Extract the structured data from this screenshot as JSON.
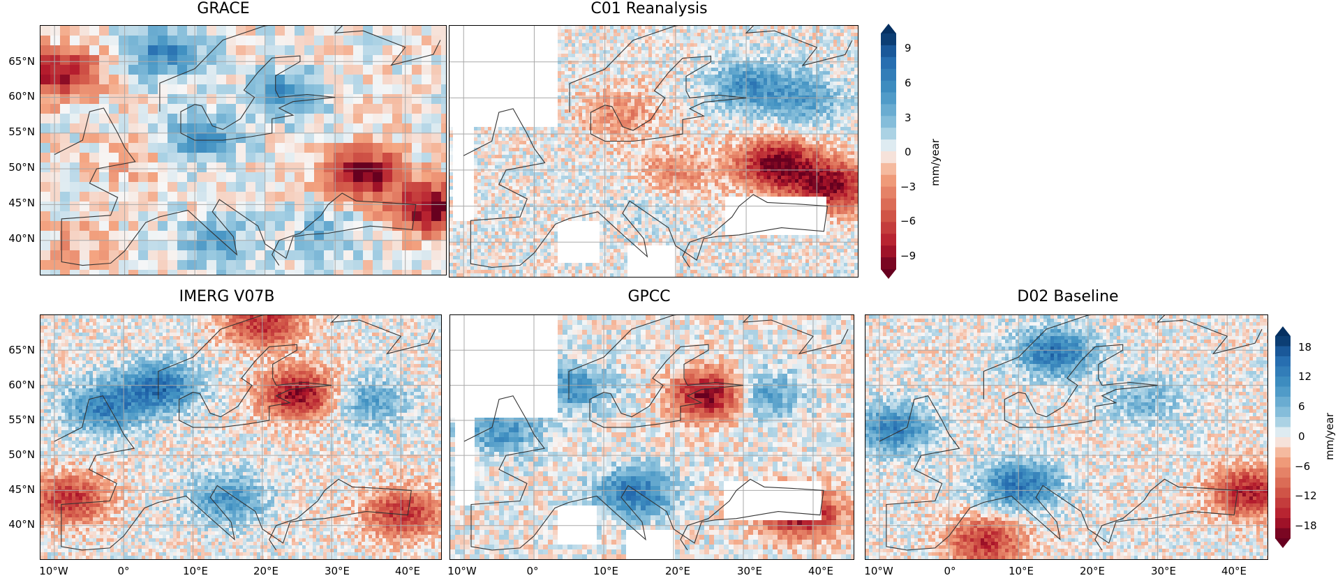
{
  "chart_data": [
    {
      "type": "heatmap",
      "title": "GRACE",
      "x": [
        "10°W",
        "0°",
        "10°E",
        "20°E",
        "30°E",
        "40°E"
      ],
      "y": [
        "65°N",
        "60°N",
        "55°N",
        "50°N",
        "45°N",
        "40°N"
      ],
      "colorbar": "shared_top",
      "pattern": [
        {
          "lon": -10,
          "lat": 64,
          "value": -9
        },
        {
          "lon": 5,
          "lat": 67,
          "value": 6
        },
        {
          "lon": 10,
          "lat": 55,
          "value": 5
        },
        {
          "lon": 22,
          "lat": 61,
          "value": 5
        },
        {
          "lon": 0,
          "lat": 52,
          "value": -2
        },
        {
          "lon": 33,
          "lat": 50,
          "value": -10
        },
        {
          "lon": 43,
          "lat": 45,
          "value": -10
        },
        {
          "lon": 12,
          "lat": 40,
          "value": 4
        },
        {
          "lon": 28,
          "lat": 42,
          "value": 3
        },
        {
          "lon": -8,
          "lat": 40,
          "value": -2
        }
      ]
    },
    {
      "type": "heatmap",
      "title": "C01 Reanalysis",
      "colorbar": "shared_top",
      "pattern": [
        {
          "lon": 30,
          "lat": 62,
          "value": 5
        },
        {
          "lon": 38,
          "lat": 60,
          "value": 4
        },
        {
          "lon": 34,
          "lat": 51,
          "value": -10
        },
        {
          "lon": 42,
          "lat": 48,
          "value": -9
        },
        {
          "lon": 20,
          "lat": 50,
          "value": -3
        },
        {
          "lon": 15,
          "lat": 45,
          "value": 1
        },
        {
          "lon": 12,
          "lat": 58,
          "value": -3
        }
      ]
    },
    {
      "type": "heatmap",
      "title": "IMERG V07B",
      "x": [
        "10°W",
        "0°",
        "10°E",
        "20°E",
        "30°E",
        "40°E"
      ],
      "y": [
        "65°N",
        "60°N",
        "55°N",
        "50°N",
        "45°N",
        "40°N"
      ],
      "colorbar": "shared_bottom",
      "pattern": [
        {
          "lon": 25,
          "lat": 59,
          "value": -18
        },
        {
          "lon": -3,
          "lat": 57,
          "value": 12
        },
        {
          "lon": 5,
          "lat": 60,
          "value": 14
        },
        {
          "lon": 20,
          "lat": 69,
          "value": -14
        },
        {
          "lon": 15,
          "lat": 44,
          "value": 10
        },
        {
          "lon": 40,
          "lat": 42,
          "value": -14
        },
        {
          "lon": -8,
          "lat": 44,
          "value": -14
        },
        {
          "lon": 35,
          "lat": 58,
          "value": 8
        }
      ]
    },
    {
      "type": "heatmap",
      "title": "GPCC",
      "x": [
        "10°W",
        "0°",
        "10°E",
        "20°E",
        "30°E",
        "40°E"
      ],
      "colorbar": "shared_bottom",
      "pattern": [
        {
          "lon": 25,
          "lat": 59,
          "value": -20
        },
        {
          "lon": 5,
          "lat": 60,
          "value": 10
        },
        {
          "lon": 14,
          "lat": 45,
          "value": 14
        },
        {
          "lon": 38,
          "lat": 42,
          "value": -18
        },
        {
          "lon": -5,
          "lat": 54,
          "value": 10
        },
        {
          "lon": 32,
          "lat": 59,
          "value": 10
        }
      ]
    },
    {
      "type": "heatmap",
      "title": "D02 Baseline",
      "x": [
        "10°W",
        "0°",
        "10°E",
        "20°E",
        "30°E",
        "40°E"
      ],
      "colorbar": "shared_bottom",
      "pattern": [
        {
          "lon": 15,
          "lat": 65,
          "value": 14
        },
        {
          "lon": 10,
          "lat": 46,
          "value": 14
        },
        {
          "lon": -8,
          "lat": 54,
          "value": 12
        },
        {
          "lon": 43,
          "lat": 45,
          "value": -16
        },
        {
          "lon": 5,
          "lat": 38,
          "value": -14
        },
        {
          "lon": 28,
          "lat": 58,
          "value": 6
        }
      ]
    }
  ],
  "colorbars": {
    "top": {
      "label": "mm/year",
      "ticks": [
        "9",
        "6",
        "3",
        "0",
        "−3",
        "−6",
        "−9"
      ],
      "range": [
        -10,
        10
      ]
    },
    "bottom": {
      "label": "mm/year",
      "ticks": [
        "18",
        "12",
        "6",
        "0",
        "−6",
        "−12",
        "−18"
      ],
      "range": [
        -20,
        20
      ]
    }
  },
  "colors": {
    "deep_red": "#67001f",
    "red": "#b2182b",
    "light_red": "#f4a582",
    "white": "#f7f7f7",
    "light_blue": "#92c5de",
    "blue": "#2166ac",
    "deep_blue": "#053061"
  }
}
